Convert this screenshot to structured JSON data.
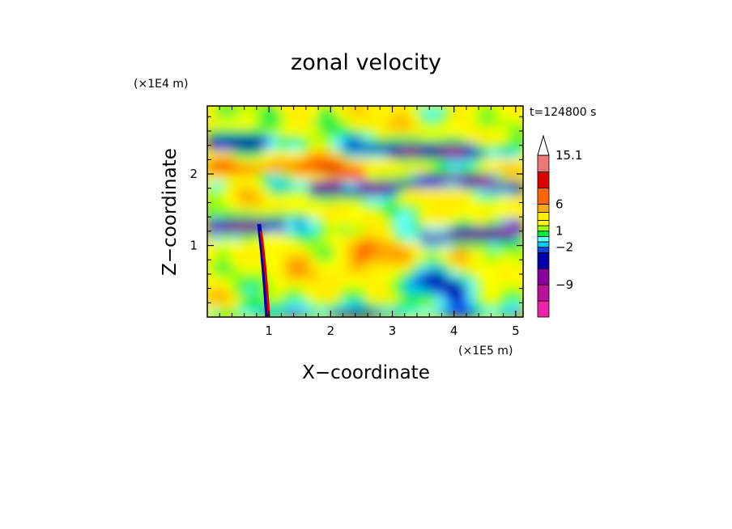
{
  "chart_data": {
    "type": "heatmap",
    "title": "zonal velocity",
    "xlabel": "X−coordinate",
    "ylabel": "Z−coordinate",
    "x_scale_label": "(×1E5 m)",
    "y_scale_label": "(×1E4 m)",
    "time_label": "t=124800 s",
    "xlim": [
      0,
      5.12
    ],
    "ylim": [
      0,
      2.95
    ],
    "x_ticks": [
      "1",
      "2",
      "3",
      "4",
      "5"
    ],
    "y_ticks": [
      "1",
      "2"
    ],
    "colorbar": {
      "labels": [
        "15.1",
        "6",
        "1",
        "−2",
        "−9"
      ],
      "label_values": [
        15.1,
        6,
        1,
        -2,
        -9
      ],
      "levels": [
        -15,
        -12,
        -9,
        -6,
        -3,
        -2,
        -1,
        0,
        1,
        2,
        3,
        4.5,
        6,
        9,
        12,
        15.1
      ],
      "colors": [
        "#ee22aa",
        "#bb1199",
        "#880099",
        "#0000aa",
        "#1144ee",
        "#00ccee",
        "#66ffff",
        "#00ee44",
        "#99ff00",
        "#ffff00",
        "#ffee00",
        "#ffaa00",
        "#ff6600",
        "#dd0000",
        "#ee7777",
        "#ffcccc"
      ],
      "extend": "max"
    },
    "features": [
      {
        "label": "negative band",
        "x": 1.5,
        "z": 2.4
      },
      {
        "label": "negative band",
        "x": 3.2,
        "z": 1.85
      },
      {
        "label": "negative band",
        "x": 0.6,
        "z": 1.2
      },
      {
        "label": "positive band",
        "x": 1.8,
        "z": 2.05
      },
      {
        "label": "positive band",
        "x": 2.7,
        "z": 0.8
      },
      {
        "label": "sharp dipole",
        "x": 0.92,
        "z": 0.7
      }
    ]
  }
}
